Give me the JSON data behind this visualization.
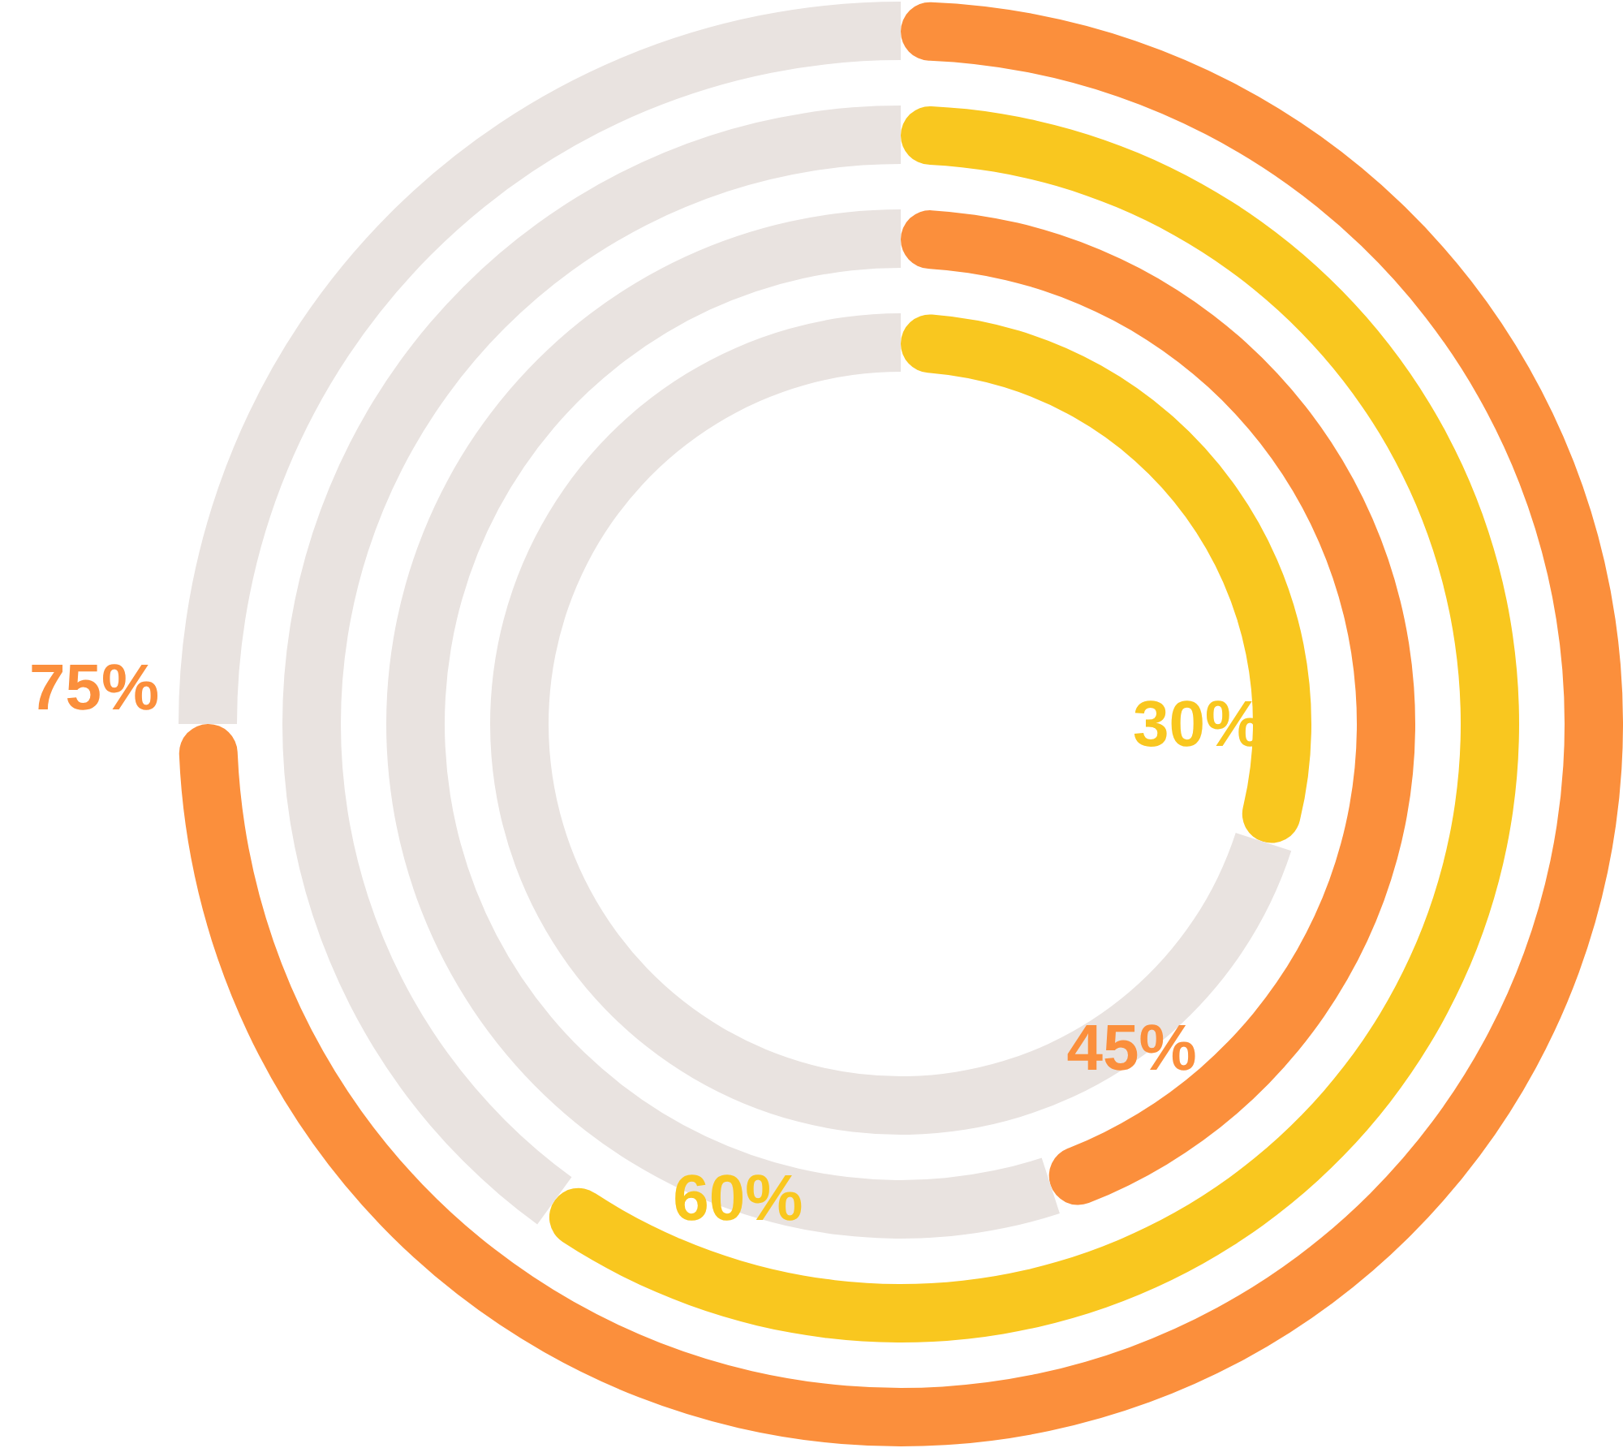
{
  "chart_data": [
    {
      "type": "donut",
      "values": [
        75,
        25
      ],
      "colors": [
        "#fb8f3c",
        "#e9e3e0"
      ],
      "value_labels": [
        "75%",
        null
      ]
    },
    {
      "type": "donut",
      "values": [
        60,
        40
      ],
      "colors": [
        "#f9c71f",
        "#e9e3e0"
      ],
      "value_labels": [
        "60%",
        null
      ]
    },
    {
      "type": "donut",
      "values": [
        45,
        55
      ],
      "colors": [
        "#fb8f3c",
        "#e9e3e0"
      ],
      "value_labels": [
        "45%",
        null
      ]
    },
    {
      "type": "donut",
      "values": [
        30,
        70
      ],
      "colors": [
        "#f9c71f",
        "#e9e3e0"
      ],
      "value_labels": [
        "30%",
        null
      ]
    }
  ]
}
